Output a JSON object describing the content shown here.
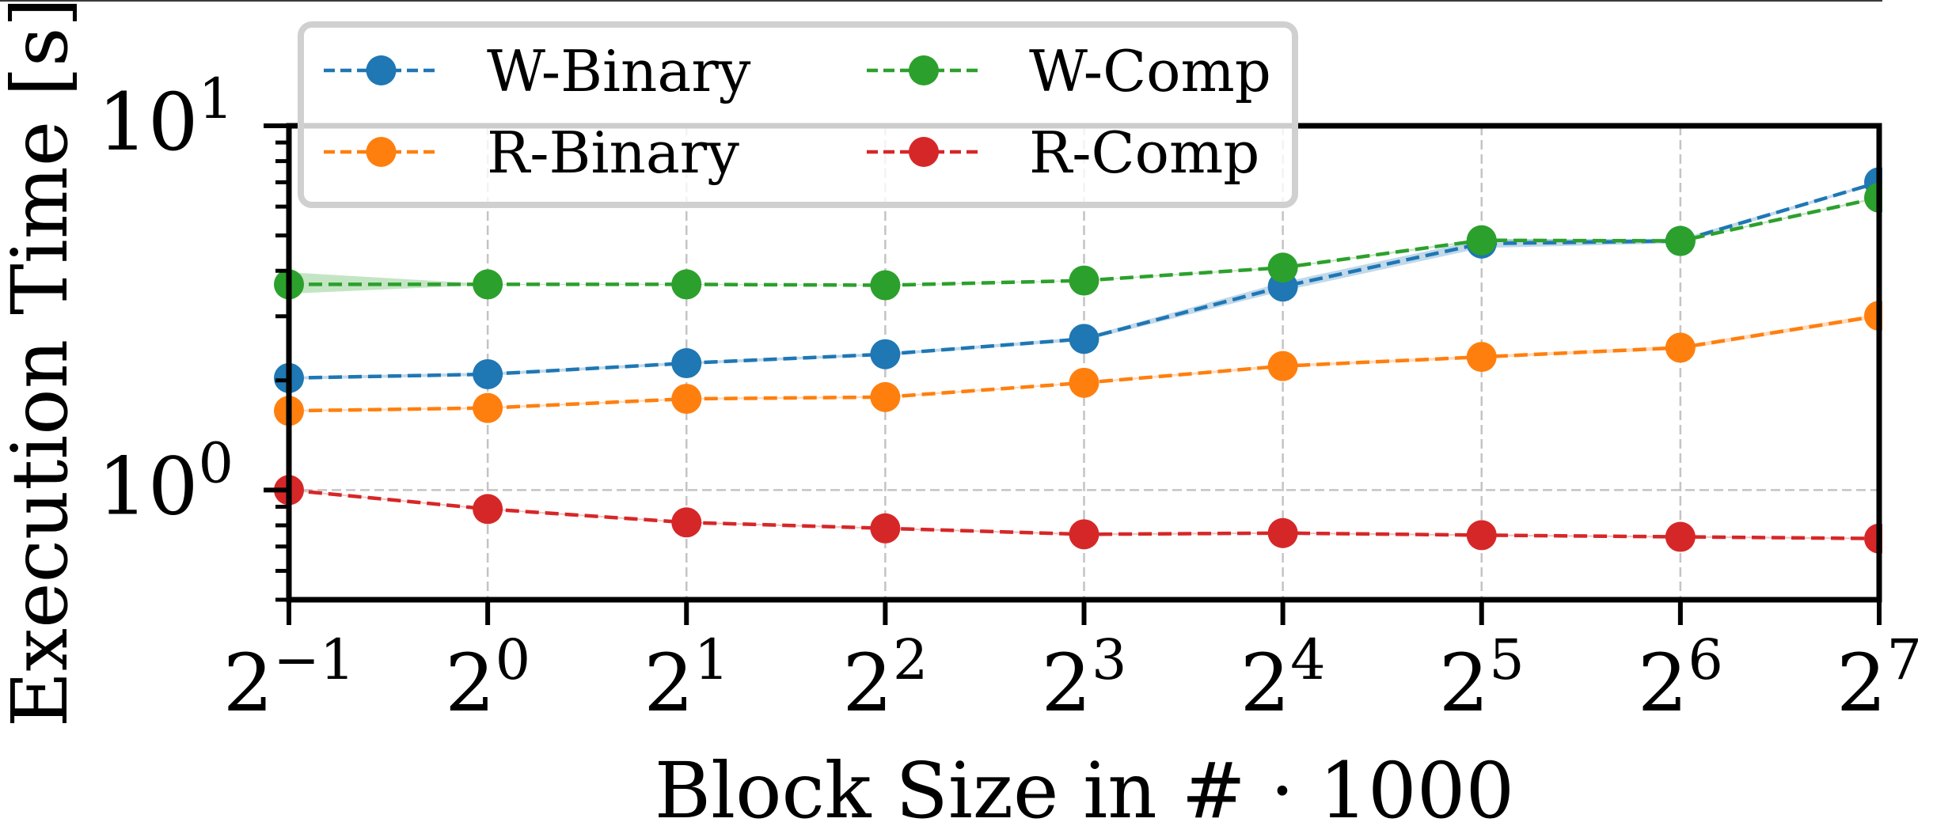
{
  "chart_data": {
    "type": "line",
    "title": "",
    "xlabel": "Block Size in # · 1000",
    "ylabel": "Execution Time [s]",
    "xscale": "log2",
    "yscale": "log10",
    "x": [
      0.5,
      1,
      2,
      4,
      8,
      16,
      32,
      64,
      128
    ],
    "xlim": [
      0.5,
      128
    ],
    "ylim": [
      0.5,
      10
    ],
    "x_ticks": [
      {
        "base": "2",
        "exp": "−1"
      },
      {
        "base": "2",
        "exp": "0"
      },
      {
        "base": "2",
        "exp": "1"
      },
      {
        "base": "2",
        "exp": "2"
      },
      {
        "base": "2",
        "exp": "3"
      },
      {
        "base": "2",
        "exp": "4"
      },
      {
        "base": "2",
        "exp": "5"
      },
      {
        "base": "2",
        "exp": "6"
      },
      {
        "base": "2",
        "exp": "7"
      }
    ],
    "y_ticks": [
      {
        "value": 1,
        "base": "10",
        "exp": "0"
      },
      {
        "value": 10,
        "base": "10",
        "exp": "1"
      }
    ],
    "grid": true,
    "legend_position": "top-left",
    "legend_columns": 2,
    "series": [
      {
        "name": "W-Binary",
        "color": "#1f77b4",
        "values": [
          2.03,
          2.08,
          2.23,
          2.36,
          2.6,
          3.62,
          4.75,
          4.83,
          7.0
        ],
        "band_low": [
          2.01,
          2.06,
          2.21,
          2.34,
          2.57,
          3.52,
          4.62,
          4.76,
          6.95
        ],
        "band_high": [
          2.05,
          2.1,
          2.25,
          2.38,
          2.63,
          3.72,
          4.88,
          4.9,
          7.05
        ]
      },
      {
        "name": "R-Binary",
        "color": "#ff7f0e",
        "values": [
          1.65,
          1.68,
          1.78,
          1.8,
          1.97,
          2.19,
          2.32,
          2.46,
          3.01
        ],
        "band_low": [
          1.64,
          1.67,
          1.77,
          1.79,
          1.96,
          2.17,
          2.3,
          2.43,
          2.97
        ],
        "band_high": [
          1.66,
          1.69,
          1.79,
          1.81,
          1.98,
          2.21,
          2.34,
          2.49,
          3.05
        ]
      },
      {
        "name": "W-Comp",
        "color": "#2ca02c",
        "values": [
          3.67,
          3.67,
          3.67,
          3.65,
          3.76,
          4.08,
          4.85,
          4.83,
          6.35
        ],
        "band_low": [
          3.46,
          3.66,
          3.66,
          3.64,
          3.75,
          4.06,
          4.82,
          4.81,
          6.31
        ],
        "band_high": [
          3.96,
          3.68,
          3.68,
          3.66,
          3.77,
          4.1,
          4.88,
          4.85,
          6.39
        ]
      },
      {
        "name": "R-Comp",
        "color": "#d62728",
        "values": [
          1.0,
          0.887,
          0.815,
          0.785,
          0.756,
          0.762,
          0.752,
          0.744,
          0.736
        ],
        "band_low": [
          0.995,
          0.883,
          0.811,
          0.781,
          0.752,
          0.758,
          0.748,
          0.74,
          0.732
        ],
        "band_high": [
          1.005,
          0.891,
          0.819,
          0.789,
          0.76,
          0.766,
          0.756,
          0.748,
          0.74
        ]
      }
    ]
  }
}
